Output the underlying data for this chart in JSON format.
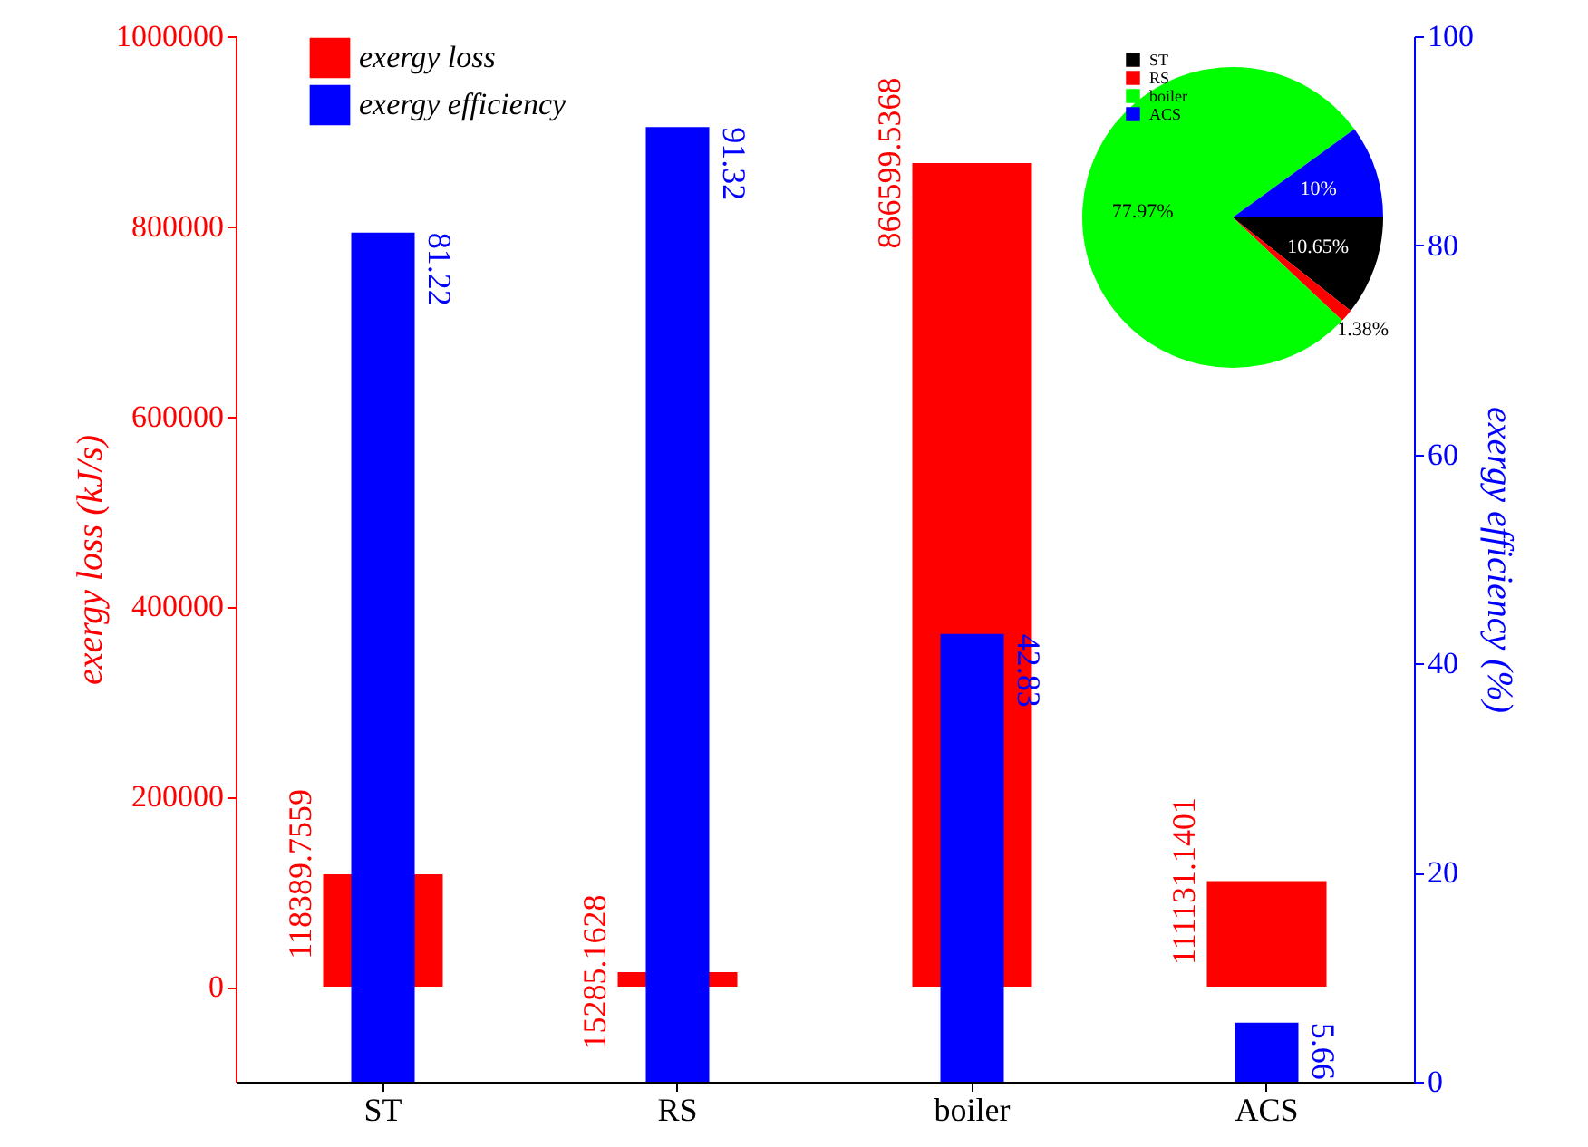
{
  "chart_data": [
    {
      "type": "bar",
      "categories": [
        "ST",
        "RS",
        "boiler",
        "ACS"
      ],
      "series": [
        {
          "name": "exergy loss",
          "color": "#ff0000",
          "values": [
            118389.7559,
            15285.1628,
            866599.5368,
            111131.1401
          ]
        },
        {
          "name": "exergy efficiency",
          "color": "#0000ff",
          "values": [
            81.22,
            91.32,
            42.83,
            5.66
          ],
          "axis": "y2"
        }
      ],
      "ylabel": "exergy loss (kJ/s)",
      "y2label": "exergy efficiency (%)",
      "ylim": [
        -100000,
        1000000
      ],
      "yticks": [
        0,
        200000,
        400000,
        600000,
        800000,
        1000000
      ],
      "y2lim": [
        0,
        100
      ],
      "y2ticks": [
        0,
        20,
        40,
        60,
        80,
        100
      ],
      "data_labels": true,
      "legend": "top left",
      "grid": false
    },
    {
      "type": "pie",
      "categories": [
        "ST",
        "RS",
        "boiler",
        "ACS"
      ],
      "values": [
        10.65,
        1.38,
        77.97,
        10
      ],
      "colors": [
        "#000000",
        "#ff0000",
        "#00ff00",
        "#0000ff"
      ],
      "value_labels": [
        "10.65%",
        "1.38%",
        "77.97%",
        "10%"
      ],
      "legend": "top left"
    }
  ]
}
